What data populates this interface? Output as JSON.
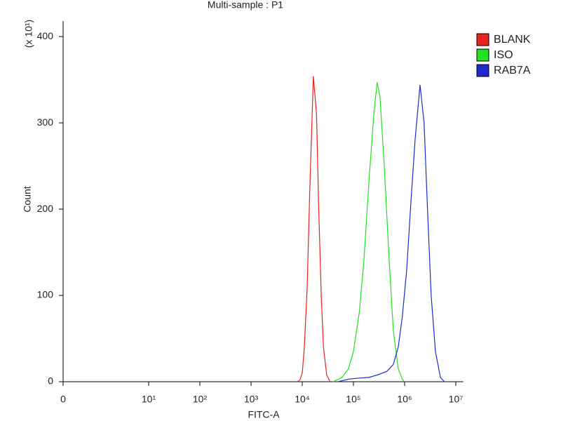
{
  "chart_data": {
    "type": "line",
    "title": "Multi-sample : P1",
    "x_label": "FITC-A",
    "y_label": "Count",
    "y_multiplier": "(x 10¹)",
    "xscale": "log",
    "legend": "top-right",
    "xlim": [
      0,
      14000000
    ],
    "ylim": [
      0,
      418
    ],
    "xticks": [
      0,
      {
        "value": 10,
        "label": "10¹"
      },
      {
        "value": 100,
        "label": "10²"
      },
      {
        "value": 1000,
        "label": "10³"
      },
      {
        "value": 10000,
        "label": "10⁴"
      },
      {
        "value": 100000,
        "label": "10⁵"
      },
      {
        "value": 1000000,
        "label": "10⁶"
      },
      {
        "value": 10000000,
        "label": "10⁷"
      }
    ],
    "yticks": [
      0,
      100,
      200,
      300,
      400
    ],
    "series": [
      {
        "name": "BLANK",
        "color": "#e8221c",
        "x": [
          8000,
          9000,
          10000,
          11000,
          12500,
          14000,
          16500,
          19000,
          21000,
          23500,
          26000,
          30000,
          35000
        ],
        "values": [
          0,
          2,
          10,
          40,
          110,
          220,
          354,
          310,
          200,
          100,
          40,
          8,
          0
        ]
      },
      {
        "name": "ISO",
        "color": "#22e022",
        "x": [
          40000,
          60000,
          80000,
          100000,
          130000,
          160000,
          200000,
          250000,
          290000,
          330000,
          400000,
          500000,
          600000,
          750000,
          900000,
          1000000
        ],
        "values": [
          0,
          5,
          15,
          35,
          80,
          140,
          230,
          310,
          347,
          330,
          250,
          140,
          60,
          15,
          3,
          0
        ]
      },
      {
        "name": "RAB7A",
        "color": "#1c2ad0",
        "x": [
          50000,
          80000,
          120000,
          200000,
          300000,
          450000,
          600000,
          750000,
          900000,
          1100000,
          1300000,
          1600000,
          2000000,
          2400000,
          2800000,
          3300000,
          4000000,
          5000000,
          6000000
        ],
        "values": [
          0,
          3,
          4,
          5,
          8,
          12,
          20,
          40,
          75,
          130,
          200,
          280,
          344,
          300,
          200,
          100,
          35,
          5,
          0
        ]
      }
    ]
  }
}
